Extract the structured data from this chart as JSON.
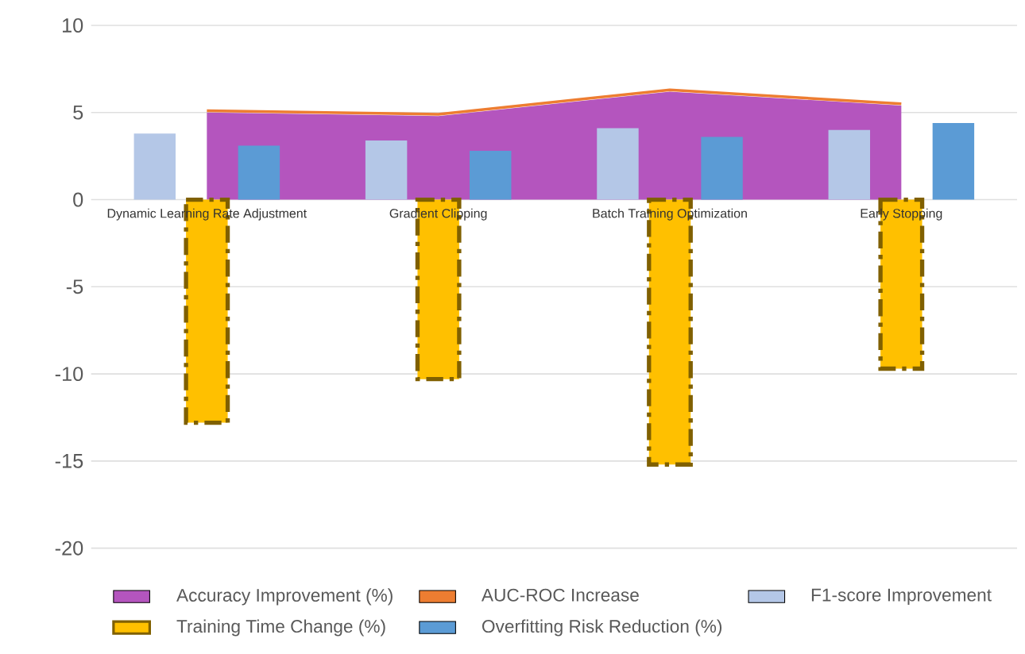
{
  "chart_data": {
    "type": "bar",
    "categories": [
      "Dynamic Learning Rate Adjustment",
      "Gradient Clipping",
      "Batch Training Optimization",
      "Early Stopping"
    ],
    "series": [
      {
        "name": "Accuracy Improvement (%)",
        "type": "area",
        "color": "#b455be",
        "values": [
          5.0,
          4.8,
          6.2,
          5.4
        ]
      },
      {
        "name": "AUC-ROC Increase",
        "type": "line",
        "color": "#ed7d31",
        "values": [
          5.1,
          4.9,
          6.3,
          5.5
        ]
      },
      {
        "name": "F1-score Improvement",
        "color": "#b4c7e7",
        "values": [
          3.8,
          3.4,
          4.1,
          4.0
        ]
      },
      {
        "name": "Training Time Change (%)",
        "color": "#ffc000",
        "values": [
          -12.8,
          -10.3,
          -15.2,
          -9.7
        ]
      },
      {
        "name": "Overfitting Risk Reduction (%)",
        "color": "#5b9bd5",
        "values": [
          3.1,
          2.8,
          3.6,
          4.4
        ]
      }
    ],
    "ylim": [
      -20,
      10
    ],
    "yticks": [
      -20,
      -15,
      -10,
      -5,
      0,
      5,
      10
    ],
    "grid": "y",
    "legend": "bottom"
  }
}
